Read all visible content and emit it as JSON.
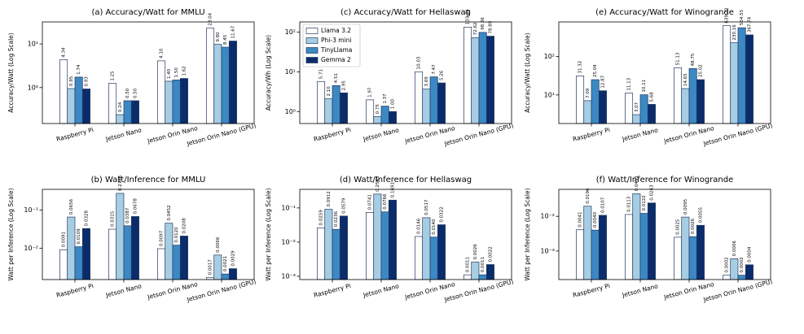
{
  "chart_data": [
    {
      "type": "bar",
      "title": "(a) Accuracy/Watt for MMLU",
      "ylabel": "Accuracy/Watt (Log Scale)",
      "log_scale": true,
      "categories": [
        "Raspberry Pi",
        "Jetson Nano",
        "Jetson Orin Nano",
        "Jetson Orin Nano (GPU)"
      ],
      "ylim": [
        0.15,
        32
      ],
      "yticks": [
        {
          "value": 1,
          "label": "10⁰"
        },
        {
          "value": 10,
          "label": "10¹"
        }
      ],
      "edgecolor": "#23395f",
      "series": [
        {
          "color": "#ffffff",
          "values": [
            4.34,
            1.25,
            4.1,
            23.04
          ],
          "value_labels": [
            "4.34",
            "1.25",
            "4.10",
            "23.04"
          ]
        },
        {
          "color": "#a6cde3",
          "values": [
            0.95,
            0.24,
            1.4,
            9.8
          ],
          "value_labels": [
            "0.95",
            "0.24",
            "1.40",
            "9.80"
          ]
        },
        {
          "color": "#3b88c4",
          "values": [
            1.74,
            0.5,
            1.5,
            8.45
          ],
          "value_labels": [
            "1.74",
            "0.50",
            "1.50",
            "8.45"
          ]
        },
        {
          "color": "#0b2c6b",
          "values": [
            0.93,
            0.5,
            1.62,
            11.67
          ],
          "value_labels": [
            "0.93",
            "0.50",
            "1.62",
            "11.67"
          ]
        }
      ]
    },
    {
      "type": "bar",
      "title": "(c) Accuracy/Watt for Hellaswag",
      "ylabel": "Accuracy/Wh (Log Scale)",
      "log_scale": true,
      "legend": "upper left",
      "categories": [
        "Raspberry Pi",
        "Jetson Nano",
        "Jetson Orin Nano",
        "Jetson Orin Nano (GPU)"
      ],
      "ylim": [
        0.5,
        180
      ],
      "yticks": [
        {
          "value": 1,
          "label": "10⁰"
        },
        {
          "value": 10,
          "label": "10¹"
        },
        {
          "value": 100,
          "label": "10²"
        }
      ],
      "edgecolor": "#23395f",
      "series": [
        {
          "name": "Llama 3.2",
          "color": "#ffffff",
          "values": [
            5.71,
            1.97,
            10.03,
            133.64
          ],
          "value_labels": [
            "5.71",
            "1.97",
            "10.03",
            "133.64"
          ]
        },
        {
          "name": "Phi-3 mini",
          "color": "#a6cde3",
          "values": [
            2.1,
            0.75,
            3.69,
            72.62
          ],
          "value_labels": [
            "2.10",
            "0.75",
            "3.69",
            "72.62"
          ]
        },
        {
          "name": "TinyLlama",
          "color": "#3b88c4",
          "values": [
            4.51,
            1.37,
            7.47,
            98.36
          ],
          "value_labels": [
            "4.51",
            "1.37",
            "7.47",
            "98.36"
          ]
        },
        {
          "name": "Gemma 2",
          "color": "#0b2c6b",
          "values": [
            2.95,
            1.0,
            5.26,
            78.89
          ],
          "value_labels": [
            "2.95",
            "1.00",
            "5.26",
            "78.89"
          ]
        }
      ]
    },
    {
      "type": "bar",
      "title": "(e) Accuracy/Watt for Winogrande",
      "ylabel": "Accuracy/Watt (Log Scale)",
      "log_scale": true,
      "categories": [
        "Raspberry Pi",
        "Jetson Nano",
        "Jetson Orin Nano",
        "Jetson Orin Nano (GPU)"
      ],
      "ylim": [
        1.8,
        800
      ],
      "yticks": [
        {
          "value": 10,
          "label": "10¹"
        },
        {
          "value": 100,
          "label": "10²"
        }
      ],
      "edgecolor": "#23395f",
      "series": [
        {
          "color": "#ffffff",
          "values": [
            31.32,
            11.13,
            51.13,
            639.22
          ],
          "value_labels": [
            "31.32",
            "11.13",
            "51.13",
            "639.22"
          ]
        },
        {
          "color": "#a6cde3",
          "values": [
            7.09,
            3.07,
            14.65,
            230.16
          ],
          "value_labels": [
            "7.09",
            "3.07",
            "14.65",
            "230.16"
          ]
        },
        {
          "color": "#3b88c4",
          "values": [
            25.04,
            10.11,
            48.75,
            564.55
          ],
          "value_labels": [
            "25.04",
            "10.11",
            "48.75",
            "564.55"
          ]
        },
        {
          "color": "#0b2c6b",
          "values": [
            12.87,
            5.68,
            25.02,
            367.74
          ],
          "value_labels": [
            "12.87",
            "5.68",
            "25.02",
            "367.74"
          ]
        }
      ]
    },
    {
      "type": "bar",
      "title": "(b) Watt/Inference for MMLU",
      "ylabel": "Watt per Inference (Log Scale)",
      "log_scale": true,
      "categories": [
        "Raspberry Pi",
        "Jetson Nano",
        "Jetson Orin Nano",
        "Jetson Orin Nano (GPU)"
      ],
      "ylim": [
        0.0015,
        0.35
      ],
      "yticks": [
        {
          "value": 0.01,
          "label": "10⁻²"
        },
        {
          "value": 0.1,
          "label": "10⁻¹"
        }
      ],
      "edgecolor": "#23395f",
      "series": [
        {
          "color": "#ffffff",
          "values": [
            0.0091,
            0.0315,
            0.0097,
            0.0017
          ],
          "value_labels": [
            "0.0091",
            "0.0315",
            "0.0097",
            "0.0017"
          ]
        },
        {
          "color": "#a6cde3",
          "values": [
            0.0656,
            0.2746,
            0.0452,
            0.0066
          ],
          "value_labels": [
            "0.0656",
            "0.2746",
            "0.0452",
            "0.0066"
          ]
        },
        {
          "color": "#3b88c4",
          "values": [
            0.0109,
            0.0387,
            0.012,
            0.0021
          ],
          "value_labels": [
            "0.0109",
            "0.0387",
            "0.0120",
            "0.0021"
          ]
        },
        {
          "color": "#0b2c6b",
          "values": [
            0.0328,
            0.0678,
            0.0208,
            0.0029
          ],
          "value_labels": [
            "0.0328",
            "0.0678",
            "0.0208",
            "0.0029"
          ]
        }
      ]
    },
    {
      "type": "bar",
      "title": "(d) Watt/Inference for Hellaswag",
      "ylabel": "Watt per Inference (Log Scale)",
      "log_scale": true,
      "categories": [
        "Raspberry Pi",
        "Jetson Nano",
        "Jetson Orin Nano",
        "Jetson Orin Nano (GPU)"
      ],
      "ylim": [
        0.0008,
        0.35
      ],
      "yticks": [
        {
          "value": 0.001,
          "label": "10⁻³"
        },
        {
          "value": 0.01,
          "label": "10⁻²"
        },
        {
          "value": 0.1,
          "label": "10⁻¹"
        }
      ],
      "edgecolor": "#23395f",
      "series": [
        {
          "color": "#ffffff",
          "values": [
            0.0259,
            0.0741,
            0.0146,
            0.0011
          ],
          "value_labels": [
            "0.0259",
            "0.0741",
            "0.0146",
            "0.0011"
          ]
        },
        {
          "color": "#a6cde3",
          "values": [
            0.0912,
            0.2543,
            0.0517,
            0.0026
          ],
          "value_labels": [
            "0.0912",
            "0.2543",
            "0.0517",
            "0.0026"
          ]
        },
        {
          "color": "#3b88c4",
          "values": [
            0.0236,
            0.0766,
            0.014,
            0.0011
          ],
          "value_labels": [
            "0.0236",
            "0.0766",
            "0.0140",
            "0.0011"
          ]
        },
        {
          "color": "#0b2c6b",
          "values": [
            0.0579,
            0.1691,
            0.0322,
            0.0022
          ],
          "value_labels": [
            "0.0579",
            "0.1691",
            "0.0322",
            "0.0022"
          ]
        }
      ]
    },
    {
      "type": "bar",
      "title": "(f) Watt/Inference for Winogrande",
      "ylabel": "Watt per Inference (Log Scale)",
      "log_scale": true,
      "categories": [
        "Raspberry Pi",
        "Jetson Nano",
        "Jetson Orin Nano",
        "Jetson Orin Nano (GPU)"
      ],
      "ylim": [
        0.00015,
        0.06
      ],
      "yticks": [
        {
          "value": 0.001,
          "label": "10⁻³"
        },
        {
          "value": 0.01,
          "label": "10⁻²"
        }
      ],
      "edgecolor": "#23395f",
      "series": [
        {
          "color": "#ffffff",
          "values": [
            0.0041,
            0.0113,
            0.0025,
            0.0002
          ],
          "value_labels": [
            "0.0041",
            "0.0113",
            "0.0025",
            "0.0002"
          ]
        },
        {
          "color": "#a6cde3",
          "values": [
            0.0196,
            0.0451,
            0.0095,
            0.0006
          ],
          "value_labels": [
            "0.0196",
            "0.0451",
            "0.0095",
            "0.0006"
          ]
        },
        {
          "color": "#3b88c4",
          "values": [
            0.004,
            0.0122,
            0.0026,
            0.0002
          ],
          "value_labels": [
            "0.0040",
            "0.0122",
            "0.0026",
            "0.0002"
          ]
        },
        {
          "color": "#0b2c6b",
          "values": [
            0.0107,
            0.0243,
            0.0055,
            0.0004
          ],
          "value_labels": [
            "0.0107",
            "0.0243",
            "0.0055",
            "0.0004"
          ]
        }
      ]
    }
  ]
}
